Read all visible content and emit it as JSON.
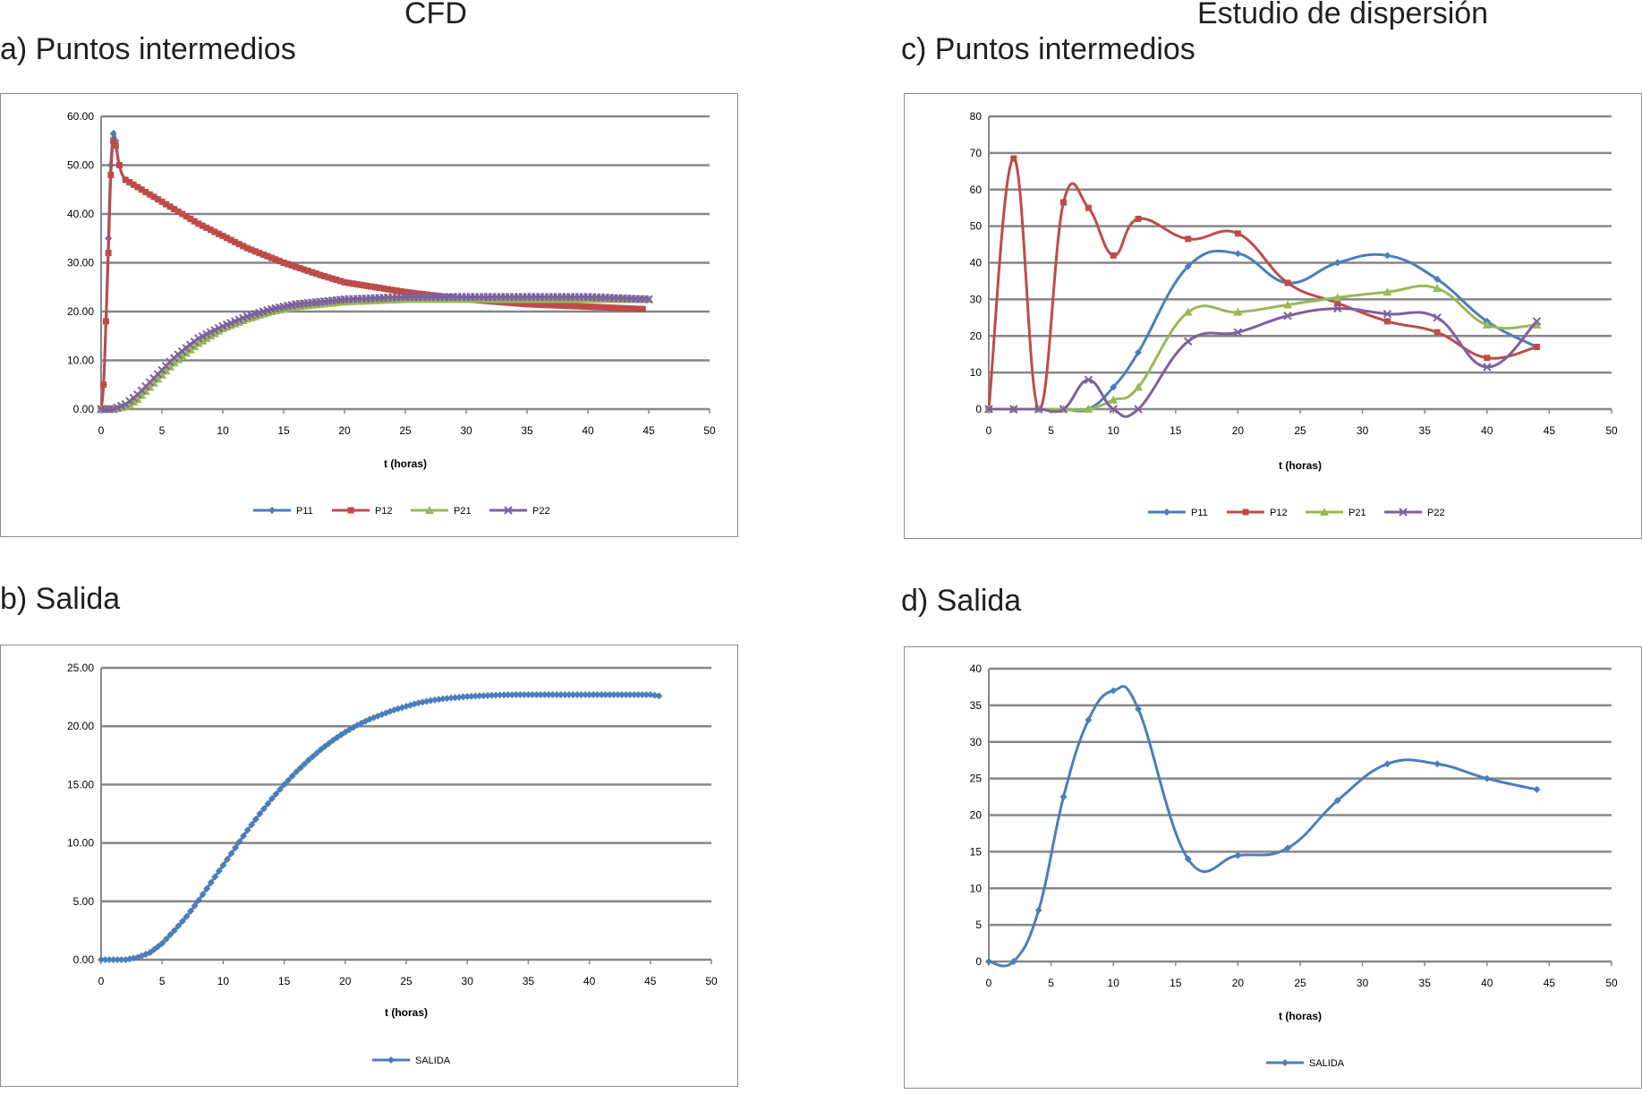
{
  "headers": {
    "left": "CFD",
    "right": "Estudio de dispersión"
  },
  "colors": {
    "P11": "#4a7ebb",
    "P12": "#be4b48",
    "P21": "#98b954",
    "P22": "#7d60a0",
    "SALIDA": "#4a7ebb",
    "grid": "#878787",
    "frame": "#8c8c8c"
  },
  "chart_data": [
    {
      "id": "a",
      "panel_title": "a) Puntos intermedios",
      "type": "line",
      "xlabel": "t (horas)",
      "ylabel": "",
      "xlim": [
        0,
        50
      ],
      "ylim": [
        0,
        60
      ],
      "xticks": [
        0,
        5,
        10,
        15,
        20,
        25,
        30,
        35,
        40,
        45,
        50
      ],
      "yticks": [
        0,
        10,
        20,
        30,
        40,
        50,
        60
      ],
      "ydecimals": 2,
      "dense": true,
      "legend_position": "bottom",
      "grid": "horizontal",
      "series": [
        {
          "name": "P11",
          "marker": "diamond",
          "x": [
            0,
            0.2,
            0.4,
            0.6,
            0.8,
            1,
            1.2,
            1.5,
            2,
            3,
            4,
            5,
            6,
            8,
            10,
            12,
            15,
            18,
            20,
            25,
            30,
            35,
            40,
            44.5
          ],
          "y": [
            0,
            5,
            18,
            35,
            50,
            56.5,
            55,
            50,
            47,
            45.5,
            44,
            42.5,
            41,
            38,
            35.5,
            33,
            30,
            27.5,
            26,
            24,
            22.5,
            21.5,
            21,
            20.5
          ]
        },
        {
          "name": "P12",
          "marker": "square",
          "x": [
            0,
            0.2,
            0.4,
            0.6,
            0.8,
            1,
            1.2,
            1.5,
            2,
            3,
            4,
            5,
            6,
            8,
            10,
            12,
            15,
            18,
            20,
            25,
            30,
            35,
            40,
            44.5
          ],
          "y": [
            0,
            5,
            18,
            32,
            48,
            55,
            54,
            50,
            47,
            45.5,
            44,
            42.5,
            41,
            38,
            35.5,
            33,
            30,
            27.5,
            26,
            24,
            22.5,
            21.5,
            21,
            20.5
          ]
        },
        {
          "name": "P21",
          "marker": "triangle",
          "x": [
            0,
            1,
            2,
            3,
            4,
            5,
            6,
            8,
            10,
            12,
            14,
            16,
            18,
            20,
            25,
            30,
            35,
            40,
            45
          ],
          "y": [
            0,
            0,
            0.5,
            2,
            4.5,
            7,
            9.5,
            13.5,
            16.5,
            18.5,
            20,
            21,
            21.5,
            22,
            22.5,
            22.5,
            22.5,
            22.5,
            22.5
          ]
        },
        {
          "name": "P22",
          "marker": "cross",
          "x": [
            0,
            1,
            2,
            3,
            4,
            5,
            6,
            8,
            10,
            12,
            14,
            16,
            18,
            20,
            25,
            30,
            35,
            40,
            45
          ],
          "y": [
            0,
            0,
            1,
            3,
            5.5,
            8,
            10.5,
            14.5,
            17,
            19,
            20.5,
            21.5,
            22,
            22.5,
            23,
            23,
            23,
            23,
            22.5
          ]
        }
      ]
    },
    {
      "id": "b",
      "panel_title": "b) Salida",
      "type": "line",
      "xlabel": "t (horas)",
      "ylabel": "",
      "xlim": [
        0,
        50
      ],
      "ylim": [
        0,
        25
      ],
      "xticks": [
        0,
        5,
        10,
        15,
        20,
        25,
        30,
        35,
        40,
        45,
        50
      ],
      "yticks": [
        0,
        5,
        10,
        15,
        20,
        25
      ],
      "ydecimals": 2,
      "dense": true,
      "legend_position": "bottom",
      "grid": "horizontal",
      "series": [
        {
          "name": "SALIDA",
          "marker": "diamond",
          "x": [
            0,
            1,
            2,
            3,
            4,
            5,
            6,
            7,
            8,
            9,
            10,
            11,
            12,
            13,
            14,
            15,
            16,
            17,
            18,
            19,
            20,
            21,
            22,
            23,
            24,
            25,
            26,
            27,
            28,
            29,
            30,
            31,
            32,
            33,
            34,
            35,
            36,
            37,
            38,
            39,
            40,
            41,
            42,
            43,
            44,
            45,
            45.7
          ],
          "y": [
            0,
            0,
            0,
            0.2,
            0.6,
            1.4,
            2.5,
            3.7,
            5.1,
            6.6,
            8.1,
            9.6,
            11.1,
            12.5,
            13.8,
            15,
            16.1,
            17.1,
            18,
            18.8,
            19.5,
            20.1,
            20.6,
            21,
            21.4,
            21.7,
            22,
            22.2,
            22.35,
            22.45,
            22.55,
            22.6,
            22.65,
            22.68,
            22.7,
            22.7,
            22.7,
            22.7,
            22.7,
            22.7,
            22.7,
            22.7,
            22.7,
            22.7,
            22.7,
            22.7,
            22.6
          ]
        }
      ]
    },
    {
      "id": "c",
      "panel_title": "c) Puntos intermedios",
      "type": "line",
      "xlabel": "t (horas)",
      "ylabel": "",
      "xlim": [
        0,
        50
      ],
      "ylim": [
        0,
        80
      ],
      "xticks": [
        0,
        5,
        10,
        15,
        20,
        25,
        30,
        35,
        40,
        45,
        50
      ],
      "yticks": [
        0,
        10,
        20,
        30,
        40,
        50,
        60,
        70,
        80
      ],
      "ydecimals": 0,
      "dense": false,
      "legend_position": "bottom",
      "grid": "horizontal",
      "series": [
        {
          "name": "P11",
          "marker": "diamond",
          "x": [
            0,
            2,
            4,
            6,
            8,
            10,
            12,
            16,
            20,
            24,
            28,
            32,
            36,
            40,
            44
          ],
          "y": [
            0,
            0,
            0,
            0,
            0,
            6,
            15.5,
            39,
            42.5,
            34.5,
            40,
            42,
            35.5,
            24,
            17
          ]
        },
        {
          "name": "P12",
          "marker": "square",
          "x": [
            0,
            2,
            4,
            6,
            8,
            10,
            12,
            16,
            20,
            24,
            28,
            32,
            36,
            40,
            44
          ],
          "y": [
            0,
            68.5,
            0,
            56.5,
            55,
            42,
            52,
            46.5,
            48,
            34.5,
            29,
            24,
            21,
            14,
            17
          ]
        },
        {
          "name": "P21",
          "marker": "triangle",
          "x": [
            0,
            2,
            4,
            6,
            8,
            10,
            12,
            16,
            20,
            24,
            28,
            32,
            36,
            40,
            44
          ],
          "y": [
            0,
            0,
            0,
            0,
            0,
            2.5,
            6,
            26.5,
            26.5,
            28.5,
            30.5,
            32,
            33,
            23,
            23
          ]
        },
        {
          "name": "P22",
          "marker": "cross",
          "x": [
            0,
            2,
            4,
            6,
            8,
            10,
            12,
            16,
            20,
            24,
            28,
            32,
            36,
            40,
            44
          ],
          "y": [
            0,
            0,
            0,
            0,
            8,
            0,
            0,
            18.5,
            21,
            25.5,
            27.5,
            26,
            25,
            11.5,
            24
          ]
        }
      ]
    },
    {
      "id": "d",
      "panel_title": "d) Salida",
      "type": "line",
      "xlabel": "t (horas)",
      "ylabel": "",
      "xlim": [
        0,
        50
      ],
      "ylim": [
        0,
        40
      ],
      "xticks": [
        0,
        5,
        10,
        15,
        20,
        25,
        30,
        35,
        40,
        45,
        50
      ],
      "yticks": [
        0,
        5,
        10,
        15,
        20,
        25,
        30,
        35,
        40
      ],
      "ydecimals": 0,
      "dense": false,
      "legend_position": "bottom",
      "grid": "horizontal",
      "series": [
        {
          "name": "SALIDA",
          "marker": "diamond",
          "x": [
            0,
            2,
            4,
            6,
            8,
            10,
            12,
            16,
            20,
            24,
            28,
            32,
            36,
            40,
            44
          ],
          "y": [
            0,
            0,
            7,
            22.5,
            33,
            37,
            34.5,
            14,
            14.5,
            15.5,
            22,
            27,
            27,
            25,
            23.5
          ]
        }
      ]
    }
  ]
}
